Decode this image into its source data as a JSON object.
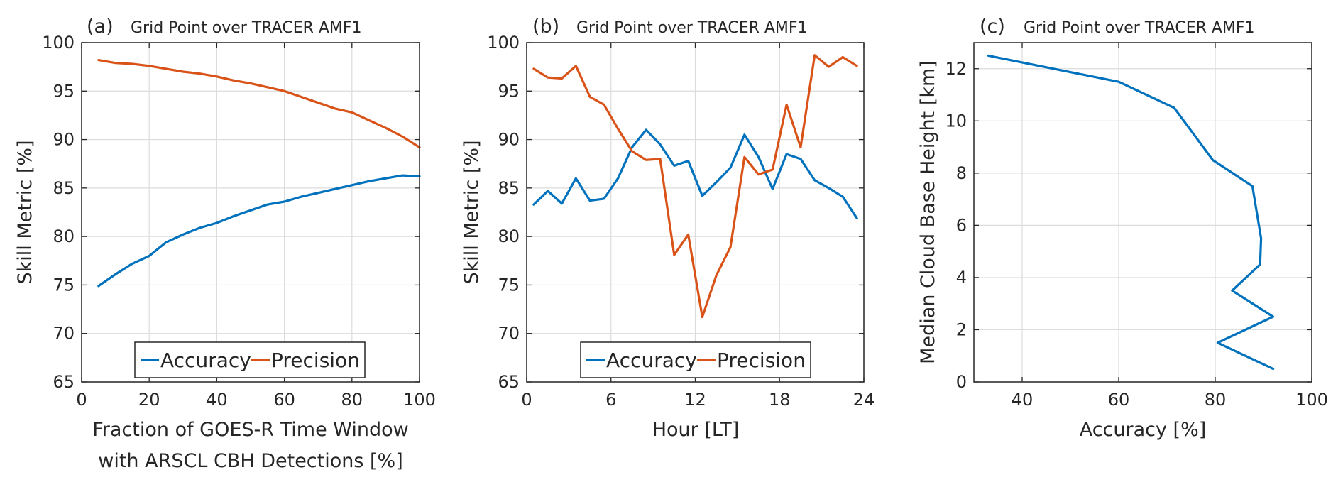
{
  "colors": {
    "accuracy": "#0072BD",
    "precision": "#D95319",
    "grid": "#dcdcdc",
    "axis": "#262626"
  },
  "chart_data": [
    {
      "id": "a",
      "type": "line",
      "panel_label": "(a)",
      "title": "Grid Point over TRACER AMF1",
      "xlabel": [
        "Fraction of GOES-R Time Window",
        "with ARSCL CBH Detections [%]"
      ],
      "ylabel": "Skill Metric [%]",
      "xlim": [
        0,
        100
      ],
      "ylim": [
        65,
        100
      ],
      "xticks": [
        0,
        20,
        40,
        60,
        80,
        100
      ],
      "yticks": [
        65,
        70,
        75,
        80,
        85,
        90,
        95,
        100
      ],
      "grid": true,
      "legend": {
        "placement": "bottom-center",
        "orientation": "horizontal"
      },
      "series": [
        {
          "name": "Accuracy",
          "color": "#0072BD",
          "x": [
            5,
            10,
            15,
            20,
            25,
            30,
            35,
            40,
            45,
            50,
            55,
            60,
            65,
            70,
            75,
            80,
            85,
            90,
            95,
            100
          ],
          "y": [
            74.9,
            76.1,
            77.2,
            78.0,
            79.4,
            80.2,
            80.9,
            81.4,
            82.1,
            82.7,
            83.3,
            83.6,
            84.1,
            84.5,
            84.9,
            85.3,
            85.7,
            86.0,
            86.3,
            86.2
          ]
        },
        {
          "name": "Precision",
          "color": "#D95319",
          "x": [
            5,
            10,
            15,
            20,
            25,
            30,
            35,
            40,
            45,
            50,
            55,
            60,
            65,
            70,
            75,
            80,
            85,
            90,
            95,
            100
          ],
          "y": [
            98.2,
            97.9,
            97.8,
            97.6,
            97.3,
            97.0,
            96.8,
            96.5,
            96.1,
            95.8,
            95.4,
            95.0,
            94.4,
            93.8,
            93.2,
            92.8,
            92.0,
            91.2,
            90.3,
            89.2
          ]
        }
      ]
    },
    {
      "id": "b",
      "type": "line",
      "panel_label": "(b)",
      "title": "Grid Point over TRACER AMF1",
      "xlabel": [
        "Hour [LT]"
      ],
      "ylabel": "Skill Metric [%]",
      "xlim": [
        0,
        24
      ],
      "ylim": [
        65,
        100
      ],
      "xticks": [
        0,
        6,
        12,
        18,
        24
      ],
      "yticks": [
        65,
        70,
        75,
        80,
        85,
        90,
        95,
        100
      ],
      "grid": true,
      "legend": {
        "placement": "bottom-center",
        "orientation": "horizontal"
      },
      "series": [
        {
          "name": "Accuracy",
          "color": "#0072BD",
          "x": [
            0.5,
            1.5,
            2.5,
            3.5,
            4.5,
            5.5,
            6.5,
            7.5,
            8.5,
            9.5,
            10.5,
            11.5,
            12.5,
            13.5,
            14.5,
            15.5,
            16.5,
            17.5,
            18.5,
            19.5,
            20.5,
            21.5,
            22.5,
            23.5
          ],
          "y": [
            83.3,
            84.7,
            83.4,
            86.0,
            83.7,
            83.9,
            86.0,
            89.2,
            91.0,
            89.5,
            87.3,
            87.8,
            84.2,
            85.6,
            87.1,
            90.5,
            88.2,
            84.9,
            88.5,
            88.0,
            85.8,
            85.0,
            84.1,
            81.9
          ]
        },
        {
          "name": "Precision",
          "color": "#D95319",
          "x": [
            0.5,
            1.5,
            2.5,
            3.5,
            4.5,
            5.5,
            6.5,
            7.5,
            8.5,
            9.5,
            10.5,
            11.5,
            12.5,
            13.5,
            14.5,
            15.5,
            16.5,
            17.5,
            18.5,
            19.5,
            20.5,
            21.5,
            22.5,
            23.5
          ],
          "y": [
            97.3,
            96.4,
            96.3,
            97.6,
            94.4,
            93.6,
            91.1,
            88.8,
            87.9,
            88.0,
            78.1,
            80.2,
            71.7,
            76.0,
            78.9,
            88.2,
            86.4,
            86.9,
            93.6,
            89.2,
            98.7,
            97.5,
            98.5,
            97.6
          ]
        }
      ]
    },
    {
      "id": "c",
      "type": "line",
      "panel_label": "(c)",
      "title": "Grid Point over TRACER AMF1",
      "xlabel": [
        "Accuracy [%]"
      ],
      "ylabel": "Median Cloud Base Height [km]",
      "xlim": [
        30,
        100
      ],
      "ylim": [
        0,
        13
      ],
      "xticks": [
        40,
        60,
        80,
        100
      ],
      "yticks": [
        0,
        2,
        4,
        6,
        8,
        10,
        12
      ],
      "grid": true,
      "series": [
        {
          "name": "Accuracy",
          "color": "#0072BD",
          "x": [
            92.0,
            80.5,
            92.0,
            83.5,
            89.3,
            89.5,
            87.7,
            79.5,
            75.5,
            71.5,
            60.0,
            33.0
          ],
          "y": [
            0.5,
            1.5,
            2.5,
            3.5,
            4.5,
            5.5,
            7.5,
            8.5,
            9.5,
            10.5,
            11.5,
            12.5
          ]
        }
      ]
    }
  ]
}
